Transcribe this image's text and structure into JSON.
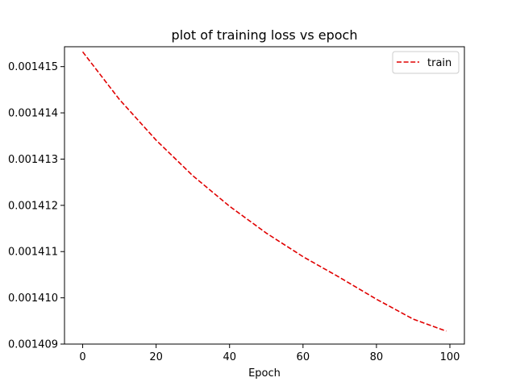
{
  "chart_data": {
    "type": "line",
    "title": "plot of training loss vs epoch",
    "xlabel": "Epoch",
    "ylabel": "",
    "xlim": [
      -4.95,
      103.95
    ],
    "ylim": [
      0.001409,
      0.00141543
    ],
    "x_ticks": [
      0,
      20,
      40,
      60,
      80,
      100
    ],
    "x_tick_labels": [
      "0",
      "20",
      "40",
      "60",
      "80",
      "100"
    ],
    "y_ticks": [
      0.001409,
      0.00141,
      0.001411,
      0.001412,
      0.001413,
      0.001414,
      0.001415
    ],
    "y_tick_labels": [
      "0.001409",
      "0.001410",
      "0.001411",
      "0.001412",
      "0.001413",
      "0.001414",
      "0.001415"
    ],
    "grid": false,
    "legend": {
      "placement": "top-right",
      "entries": [
        "train"
      ]
    },
    "series": [
      {
        "name": "train",
        "color": "#e00000",
        "line_style": "dashed",
        "x": [
          0,
          10,
          20,
          30,
          40,
          50,
          60,
          70,
          80,
          90,
          99
        ],
        "y": [
          0.00141532,
          0.00141429,
          0.00141341,
          0.00141264,
          0.00141198,
          0.0014114,
          0.00141089,
          0.00141044,
          0.00140997,
          0.00140954,
          0.00140928
        ]
      }
    ]
  }
}
